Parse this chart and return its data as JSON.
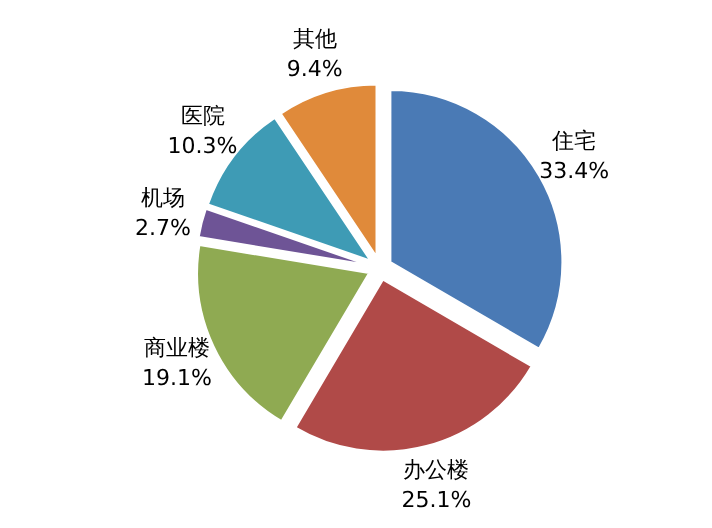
{
  "chart_data": {
    "type": "pie",
    "categories": [
      "住宅",
      "办公楼",
      "商业楼",
      "机场",
      "医院",
      "其他"
    ],
    "values": [
      33.4,
      25.1,
      19.1,
      2.7,
      10.3,
      9.4
    ],
    "colors": [
      "#4a7ab5",
      "#b04a48",
      "#8faa52",
      "#6e5496",
      "#3e9bb5",
      "#e08a3a"
    ],
    "value_labels": [
      "33.4%",
      "25.1%",
      "19.1%",
      "2.7%",
      "10.3%",
      "9.4%"
    ]
  }
}
